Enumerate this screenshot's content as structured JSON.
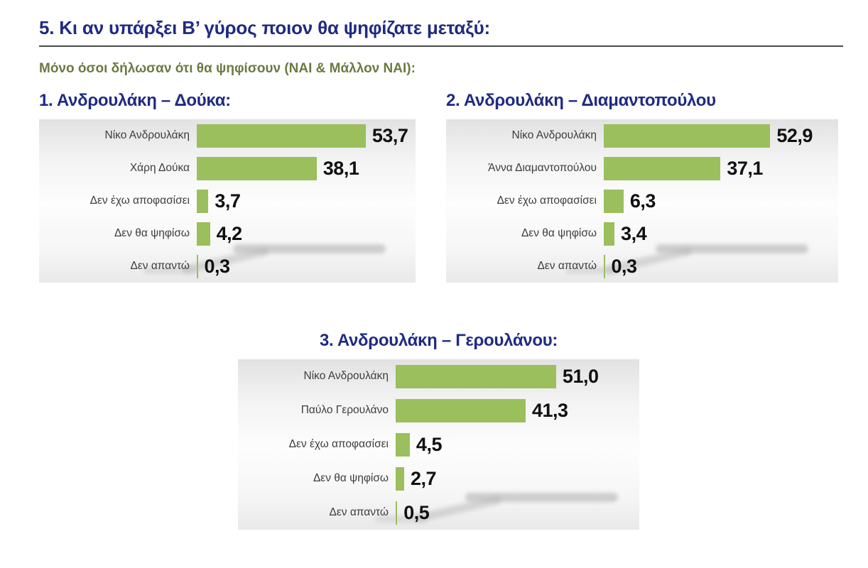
{
  "header": {
    "title": "5. Κι αν υπάρξει Β’ γύρος ποιον θα ψηφίζατε μεταξύ:",
    "subtitle": "Μόνο όσοι δήλωσαν ότι θα ψηφίσουν (ΝΑΙ & Μάλλον ΝΑΙ):"
  },
  "colors": {
    "bar_green": "#9abf5c",
    "title_navy": "#1f2b82",
    "subtitle_olive": "#6b7a42",
    "label_gray": "#3d3d3d",
    "value_black": "#101010",
    "swoosh_gray": "#a6a6a6"
  },
  "chart_data": [
    {
      "type": "bar",
      "orientation": "horizontal",
      "title": "1. Ανδρουλάκη – Δούκα:",
      "categories": [
        "Νίκο Ανδρουλάκη",
        "Χάρη Δούκα",
        "Δεν έχω αποφασίσει",
        "Δεν θα ψηφίσω",
        "Δεν απαντώ"
      ],
      "values": [
        53.7,
        38.1,
        3.7,
        4.2,
        0.3
      ],
      "value_labels": [
        "53,7",
        "38,1",
        "3,7",
        "4,2",
        "0,3"
      ],
      "xlim": [
        0,
        60
      ],
      "grid": false,
      "legend": null,
      "data_labels": "outside-end"
    },
    {
      "type": "bar",
      "orientation": "horizontal",
      "title": "2. Ανδρουλάκη – Διαμαντοπούλου",
      "categories": [
        "Νίκο Ανδρουλάκη",
        "Άννα Διαμαντοπούλου",
        "Δεν έχω αποφασίσει",
        "Δεν θα ψηφίσω",
        "Δεν απαντώ"
      ],
      "values": [
        52.9,
        37.1,
        6.3,
        3.4,
        0.3
      ],
      "value_labels": [
        "52,9",
        "37,1",
        "6,3",
        "3,4",
        "0,3"
      ],
      "xlim": [
        0,
        60
      ],
      "grid": false,
      "legend": null,
      "data_labels": "outside-end"
    },
    {
      "type": "bar",
      "orientation": "horizontal",
      "title": "3. Ανδρουλάκη – Γερουλάνου:",
      "categories": [
        "Νίκο Ανδρουλάκη",
        "Παύλο Γερουλάνο",
        "Δεν έχω αποφασίσει",
        "Δεν θα ψηφίσω",
        "Δεν απαντώ"
      ],
      "values": [
        51.0,
        41.3,
        4.5,
        2.7,
        0.5
      ],
      "value_labels": [
        "51,0",
        "41,3",
        "4,5",
        "2,7",
        "0,5"
      ],
      "xlim": [
        0,
        60
      ],
      "grid": false,
      "legend": null,
      "data_labels": "outside-end"
    }
  ]
}
